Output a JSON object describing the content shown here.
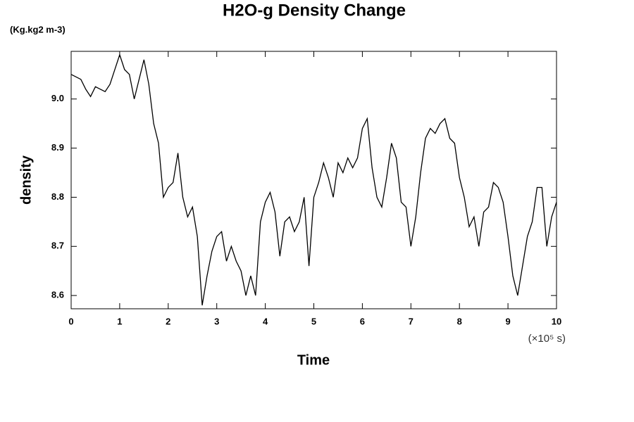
{
  "chart_data": {
    "type": "line",
    "title": "H2O-g Density Change",
    "y_unit": "(Kg.kg2 m-3)",
    "ylabel": "density",
    "xlabel": "Time",
    "x_unit": "(×10⁵ s)",
    "x": [
      0,
      0.1,
      0.2,
      0.3,
      0.4,
      0.5,
      0.6,
      0.7,
      0.8,
      0.9,
      1,
      1.1,
      1.2,
      1.3,
      1.4,
      1.5,
      1.6,
      1.7,
      1.8,
      1.9,
      2,
      2.1,
      2.2,
      2.3,
      2.4,
      2.5,
      2.6,
      2.7,
      2.8,
      2.9,
      3,
      3.1,
      3.2,
      3.3,
      3.4,
      3.5,
      3.6,
      3.7,
      3.8,
      3.9,
      4,
      4.1,
      4.2,
      4.3,
      4.4,
      4.5,
      4.6,
      4.7,
      4.8,
      4.9,
      5,
      5.1,
      5.2,
      5.3,
      5.4,
      5.5,
      5.6,
      5.7,
      5.8,
      5.9,
      6,
      6.1,
      6.2,
      6.3,
      6.4,
      6.5,
      6.6,
      6.7,
      6.8,
      6.9,
      7,
      7.1,
      7.2,
      7.3,
      7.4,
      7.5,
      7.6,
      7.7,
      7.8,
      7.9,
      8,
      8.1,
      8.2,
      8.3,
      8.4,
      8.5,
      8.6,
      8.7,
      8.8,
      8.9,
      9,
      9.1,
      9.2,
      9.3,
      9.4,
      9.5,
      9.6,
      9.7,
      9.8,
      9.9,
      10
    ],
    "series": [
      {
        "color": "#000000",
        "values": [
          9.05,
          9.045,
          9.04,
          9.02,
          9.005,
          9.025,
          9.02,
          9.015,
          9.03,
          9.06,
          9.09,
          9.06,
          9.05,
          9.0,
          9.04,
          9.08,
          9.03,
          8.95,
          8.91,
          8.8,
          8.82,
          8.83,
          8.89,
          8.8,
          8.76,
          8.78,
          8.72,
          8.58,
          8.64,
          8.69,
          8.72,
          8.73,
          8.67,
          8.7,
          8.67,
          8.65,
          8.6,
          8.64,
          8.6,
          8.75,
          8.79,
          8.81,
          8.77,
          8.68,
          8.75,
          8.76,
          8.73,
          8.75,
          8.8,
          8.66,
          8.8,
          8.83,
          8.87,
          8.84,
          8.8,
          8.87,
          8.85,
          8.88,
          8.86,
          8.88,
          8.94,
          8.96,
          8.86,
          8.8,
          8.78,
          8.84,
          8.91,
          8.88,
          8.79,
          8.78,
          8.7,
          8.76,
          8.85,
          8.92,
          8.94,
          8.93,
          8.95,
          8.96,
          8.92,
          8.91,
          8.84,
          8.8,
          8.74,
          8.76,
          8.7,
          8.77,
          8.78,
          8.83,
          8.82,
          8.79,
          8.72,
          8.64,
          8.6,
          8.66,
          8.72,
          8.75,
          8.82,
          8.82,
          8.7,
          8.76,
          8.79
        ]
      }
    ],
    "xlim": [
      0,
      10
    ],
    "xticks": [
      0,
      1,
      2,
      3,
      4,
      5,
      6,
      7,
      8,
      9,
      10
    ],
    "ylim": [
      8.573,
      9.097
    ],
    "yticks": [
      8.6,
      8.7,
      8.8,
      8.9,
      {
        "value": 9.0,
        "label": "9.0"
      }
    ],
    "grid": false
  }
}
